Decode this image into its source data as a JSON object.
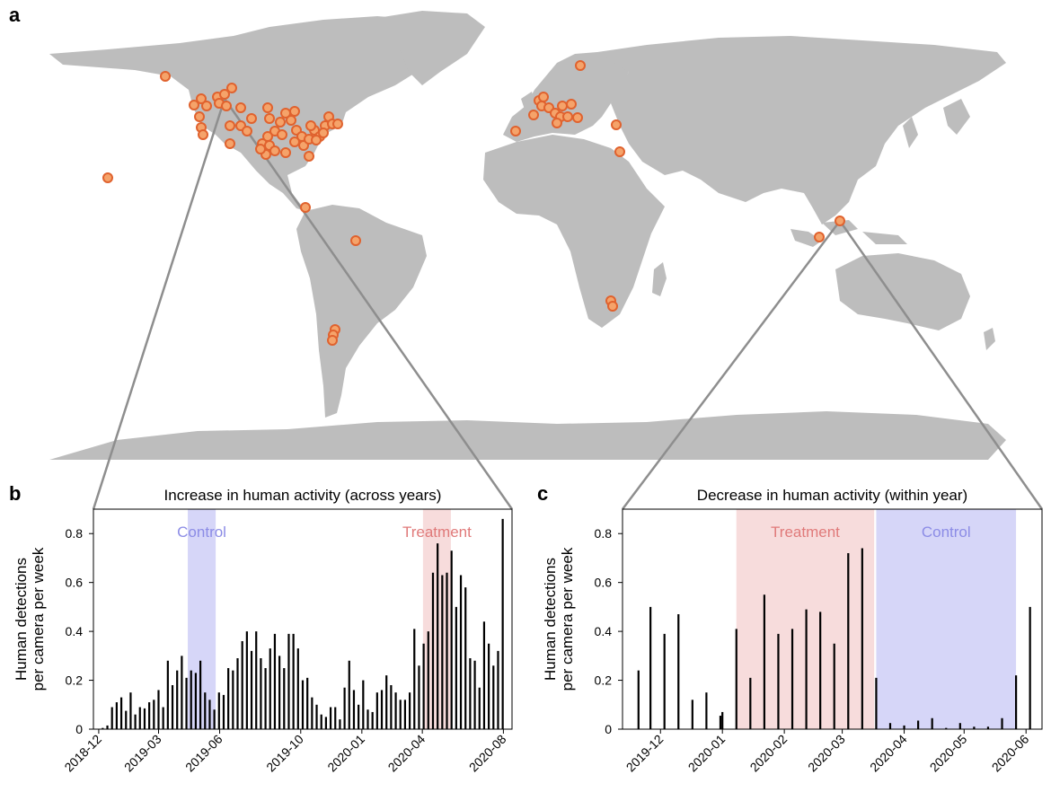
{
  "panels": {
    "a": "a",
    "b": "b",
    "c": "c"
  },
  "map": {
    "land_color": "#bdbdbd",
    "site_fill": "#f5a36a",
    "site_stroke": "#e0622e",
    "connector_color": "#8e8e8e"
  },
  "chart_data": [
    {
      "type": "bar",
      "title": "Increase in human activity (across years)",
      "ylabel_line1": "Human detections",
      "ylabel_line2": "per camera per week",
      "ylim": [
        0,
        0.9
      ],
      "yticks": [
        0,
        0.2,
        0.4,
        0.6,
        0.8
      ],
      "ytick_labels": [
        "0",
        "0.2",
        "0.4",
        "0.6",
        "0.8"
      ],
      "xlim": [
        "2018-11-23",
        "2020-08-14"
      ],
      "xticks": [
        "2018-12-01",
        "2019-03-01",
        "2019-06-01",
        "2019-10-01",
        "2020-01-01",
        "2020-04-01",
        "2020-08-01"
      ],
      "xtick_labels": [
        "2018-12",
        "2019-03",
        "2019-06",
        "2019-10",
        "2020-01",
        "2020-04",
        "2020-08"
      ],
      "bands": [
        {
          "label": "Control",
          "start": "2019-04-14",
          "end": "2019-05-26",
          "color": "#d6d6f8",
          "text_color": "#8c8ce6"
        },
        {
          "label": "Treatment",
          "start": "2020-04-02",
          "end": "2020-05-14",
          "color": "#f7dcdc",
          "text_color": "#e07a7a"
        }
      ],
      "grid": false,
      "start_date": "2018-12-07",
      "bar_interval_days": 7,
      "values": [
        0.005,
        0.015,
        0.09,
        0.11,
        0.13,
        0.075,
        0.15,
        0.06,
        0.09,
        0.085,
        0.11,
        0.12,
        0.16,
        0.09,
        0.28,
        0.18,
        0.24,
        0.3,
        0.21,
        0.24,
        0.23,
        0.28,
        0.15,
        0.12,
        0.08,
        0.15,
        0.14,
        0.25,
        0.24,
        0.29,
        0.36,
        0.4,
        0.32,
        0.4,
        0.29,
        0.25,
        0.33,
        0.39,
        0.3,
        0.25,
        0.39,
        0.39,
        0.33,
        0.2,
        0.21,
        0.13,
        0.1,
        0.06,
        0.05,
        0.09,
        0.09,
        0.04,
        0.17,
        0.28,
        0.16,
        0.1,
        0.2,
        0.08,
        0.07,
        0.15,
        0.16,
        0.22,
        0.18,
        0.15,
        0.12,
        0.12,
        0.15,
        0.41,
        0.26,
        0.35,
        0.4,
        0.64,
        0.76,
        0.63,
        0.64,
        0.73,
        0.5,
        0.63,
        0.58,
        0.29,
        0.28,
        0.17,
        0.44,
        0.35,
        0.26,
        0.32,
        0.86
      ]
    },
    {
      "type": "bar",
      "title": "Decrease in human activity (within year)",
      "ylabel_line1": "Human detections",
      "ylabel_line2": "per camera per week",
      "ylim": [
        0,
        0.9
      ],
      "yticks": [
        0,
        0.2,
        0.4,
        0.6,
        0.8
      ],
      "ytick_labels": [
        "0",
        "0.2",
        "0.4",
        "0.6",
        "0.8"
      ],
      "xlim": [
        "2019-11-12",
        "2020-06-09"
      ],
      "xticks": [
        "2019-12-01",
        "2020-01-01",
        "2020-02-01",
        "2020-03-01",
        "2020-04-01",
        "2020-05-01",
        "2020-06-01"
      ],
      "xtick_labels": [
        "2019-12",
        "2020-01",
        "2020-02",
        "2020-03",
        "2020-04",
        "2020-05",
        "2020-06"
      ],
      "bands": [
        {
          "label": "Treatment",
          "start": "2020-01-08",
          "end": "2020-03-17",
          "color": "#f7dcdc",
          "text_color": "#e07a7a"
        },
        {
          "label": "Control",
          "start": "2020-03-18",
          "end": "2020-05-27",
          "color": "#d6d6f8",
          "text_color": "#8c8ce6"
        }
      ],
      "grid": false,
      "bars": [
        {
          "date": "2019-11-20",
          "value": 0.24
        },
        {
          "date": "2019-11-26",
          "value": 0.5
        },
        {
          "date": "2019-12-03",
          "value": 0.39
        },
        {
          "date": "2019-12-10",
          "value": 0.47
        },
        {
          "date": "2019-12-17",
          "value": 0.12
        },
        {
          "date": "2019-12-24",
          "value": 0.15
        },
        {
          "date": "2019-12-31",
          "value": 0.055
        },
        {
          "date": "2020-01-01",
          "value": 0.07
        },
        {
          "date": "2020-01-08",
          "value": 0.41
        },
        {
          "date": "2020-01-15",
          "value": 0.21
        },
        {
          "date": "2020-01-22",
          "value": 0.55
        },
        {
          "date": "2020-01-29",
          "value": 0.39
        },
        {
          "date": "2020-02-05",
          "value": 0.41
        },
        {
          "date": "2020-02-12",
          "value": 0.49
        },
        {
          "date": "2020-02-19",
          "value": 0.48
        },
        {
          "date": "2020-02-26",
          "value": 0.35
        },
        {
          "date": "2020-03-04",
          "value": 0.72
        },
        {
          "date": "2020-03-11",
          "value": 0.74
        },
        {
          "date": "2020-03-18",
          "value": 0.21
        },
        {
          "date": "2020-03-25",
          "value": 0.025
        },
        {
          "date": "2020-04-01",
          "value": 0.015
        },
        {
          "date": "2020-04-08",
          "value": 0.035
        },
        {
          "date": "2020-04-15",
          "value": 0.045
        },
        {
          "date": "2020-04-22",
          "value": 0.005
        },
        {
          "date": "2020-04-29",
          "value": 0.025
        },
        {
          "date": "2020-05-06",
          "value": 0.01
        },
        {
          "date": "2020-05-13",
          "value": 0.01
        },
        {
          "date": "2020-05-20",
          "value": 0.045
        },
        {
          "date": "2020-05-27",
          "value": 0.22
        },
        {
          "date": "2020-06-03",
          "value": 0.5
        }
      ]
    }
  ]
}
